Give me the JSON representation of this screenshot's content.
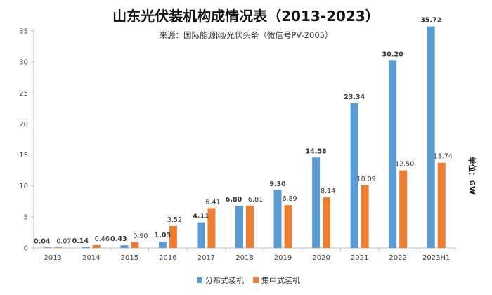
{
  "chart_data": {
    "type": "bar",
    "title": "山东光伏装机构成情况表（2013-2023）",
    "subtitle": "来源：国际能源网/光伏头条（微信号PV-2005）",
    "ylabel": "单位：GW",
    "xlabel": "",
    "ylim": [
      0,
      35
    ],
    "yticks": [
      0,
      5,
      10,
      15,
      20,
      25,
      30,
      35
    ],
    "grid": false,
    "legend_position": "bottom",
    "categories": [
      "2013",
      "2014",
      "2015",
      "2016",
      "2017",
      "2018",
      "2019",
      "2020",
      "2021",
      "2022",
      "2023H1"
    ],
    "series": [
      {
        "name": "分布式装机",
        "color": "#5B9BD5",
        "values": [
          0.04,
          0.14,
          0.43,
          1.03,
          4.11,
          6.8,
          9.3,
          14.58,
          23.34,
          30.2,
          35.72
        ],
        "labels": [
          "0.04",
          "0.14",
          "0.43",
          "1.03",
          "4.11",
          "6.80",
          "9.30",
          "14.58",
          "23.34",
          "30.20",
          "35.72"
        ]
      },
      {
        "name": "集中式装机",
        "color": "#ED7D31",
        "values": [
          0.07,
          0.46,
          0.9,
          3.52,
          6.41,
          6.81,
          6.89,
          8.14,
          10.09,
          12.5,
          13.74
        ],
        "labels": [
          "0.07",
          "0.46",
          "0.90",
          "3.52",
          "6.41",
          "6.81",
          "6.89",
          "8.14",
          "10.09",
          "12.50",
          "13.74"
        ]
      }
    ]
  }
}
